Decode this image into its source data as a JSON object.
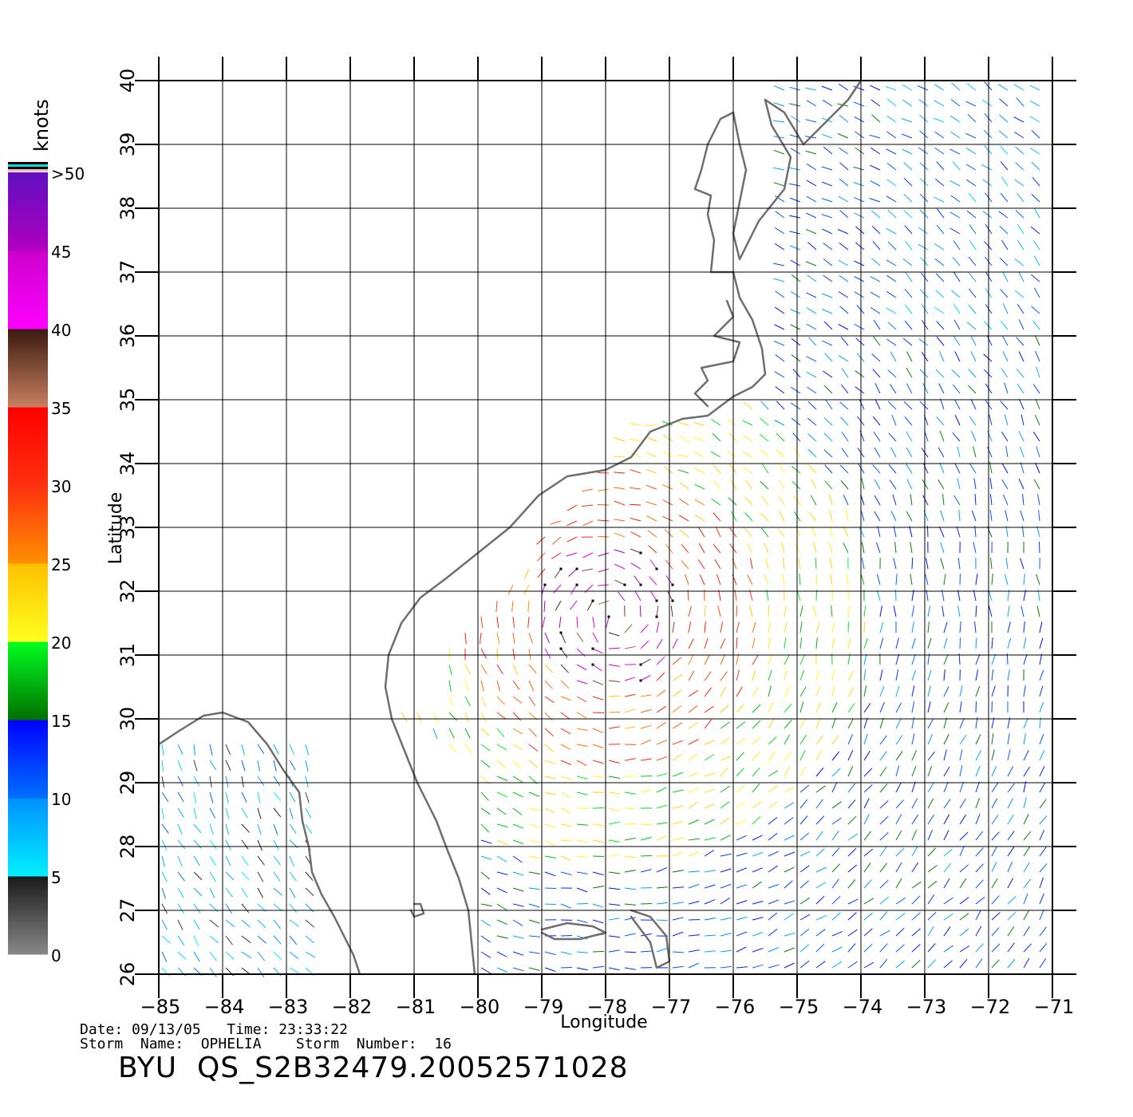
{
  "map": {
    "lon_range": [
      -85,
      -71
    ],
    "lat_range": [
      26,
      40
    ],
    "lon_ticks": [
      -85,
      -84,
      -83,
      -82,
      -81,
      -80,
      -79,
      -78,
      -77,
      -76,
      -75,
      -74,
      -73,
      -72,
      -71
    ],
    "lat_ticks": [
      26,
      27,
      28,
      29,
      30,
      31,
      32,
      33,
      34,
      35,
      36,
      37,
      38,
      39,
      40
    ],
    "lon_tick_labels": [
      "−85",
      "−84",
      "−83",
      "−82",
      "−81",
      "−80",
      "−79",
      "−78",
      "−77",
      "−76",
      "−75",
      "−74",
      "−73",
      "−72",
      "−71"
    ],
    "lat_tick_labels": [
      "26",
      "27",
      "28",
      "29",
      "30",
      "31",
      "32",
      "33",
      "34",
      "35",
      "36",
      "37",
      "38",
      "39",
      "40"
    ],
    "xlabel": "Longitude",
    "ylabel": "Latitude",
    "grid": true,
    "coastline_color": "#6e6e6e",
    "storm_center": {
      "lon": -77.9,
      "lat": 31.6
    }
  },
  "legend": {
    "title": "knots",
    "labels": [
      ">50",
      "45",
      "40",
      "35",
      "30",
      "25",
      "20",
      "15",
      "10",
      "5",
      "0"
    ],
    "bands": [
      {
        "min": 0,
        "max": 5,
        "colors": [
          "#888888",
          "#1a1a1a"
        ]
      },
      {
        "min": 5,
        "max": 10,
        "colors": [
          "#00f0ff",
          "#0090ff"
        ]
      },
      {
        "min": 10,
        "max": 15,
        "colors": [
          "#0070ff",
          "#0000ff"
        ]
      },
      {
        "min": 15,
        "max": 20,
        "colors": [
          "#007000",
          "#00ff20"
        ]
      },
      {
        "min": 20,
        "max": 25,
        "colors": [
          "#ffff20",
          "#ffc000"
        ]
      },
      {
        "min": 25,
        "max": 30,
        "colors": [
          "#ff9000",
          "#ff3010"
        ]
      },
      {
        "min": 30,
        "max": 35,
        "colors": [
          "#ff3010",
          "#ff0000"
        ]
      },
      {
        "min": 35,
        "max": 40,
        "colors": [
          "#c88060",
          "#3a1a10"
        ]
      },
      {
        "min": 40,
        "max": 45,
        "colors": [
          "#ff00ff",
          "#cc00cc"
        ]
      },
      {
        "min": 45,
        "max": 50,
        "colors": [
          "#b000c0",
          "#6010c0"
        ]
      }
    ],
    "top_stripes": [
      "#ffb0c0",
      "#000000",
      "#00e0e0",
      "#000000"
    ]
  },
  "footer": {
    "date_line": "Date: 09/13/05   Time: 23:33:22",
    "storm_line": "Storm  Name:  OPHELIA    Storm  Number:  16",
    "product_id": "BYU  QS_S2B32479.20052571028"
  }
}
